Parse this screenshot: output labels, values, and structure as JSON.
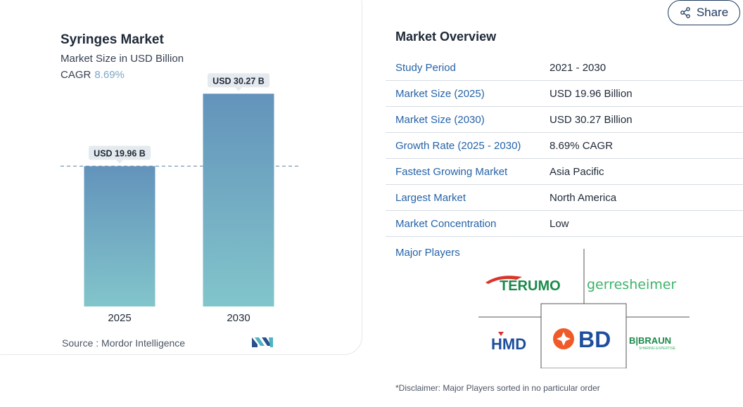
{
  "chart": {
    "title": "Syringes Market",
    "subtitle": "Market Size in USD Billion",
    "cagr_label": "CAGR",
    "cagr_value": "8.69%",
    "source": "Source :  Mordor Intelligence"
  },
  "chart_data": {
    "type": "bar",
    "title": "Syringes Market",
    "categories": [
      "2025",
      "2030"
    ],
    "values": [
      19.96,
      30.27
    ],
    "data_labels": [
      "USD 19.96 B",
      "USD 30.27 B"
    ],
    "ylabel": "Market Size in USD Billion",
    "ylim": [
      0,
      32
    ],
    "grid": false,
    "reference_line_at": 19.96
  },
  "share": {
    "label": "Share"
  },
  "overview": {
    "title": "Market Overview",
    "rows": [
      {
        "label": "Study Period",
        "value": "2021 - 2030"
      },
      {
        "label": "Market Size (2025)",
        "value": "USD 19.96 Billion"
      },
      {
        "label": "Market Size (2030)",
        "value": "USD 30.27 Billion"
      },
      {
        "label": "Growth Rate (2025 - 2030)",
        "value": "8.69% CAGR"
      },
      {
        "label": "Fastest Growing Market",
        "value": "Asia Pacific"
      },
      {
        "label": "Largest Market",
        "value": "North America"
      },
      {
        "label": "Market Concentration",
        "value": "Low"
      }
    ],
    "players_title": "Major Players",
    "players": {
      "terumo": "TERUMO",
      "gerresheimer": "gerresheimer",
      "hmd": "HMD",
      "bd": "BD",
      "bbraun": "B|BRAUN",
      "bbraun_tagline": "SHARING EXPERTISE"
    },
    "disclaimer": "*Disclaimer: Major Players sorted in no particular order"
  },
  "colors": {
    "bar_top": "#6393bb",
    "bar_bottom": "#82c5cb",
    "accent_blue": "#2563a8",
    "terumo_green": "#1a8a4a",
    "bd_orange": "#f05a28",
    "gerresheimer_green": "#3db36b"
  }
}
